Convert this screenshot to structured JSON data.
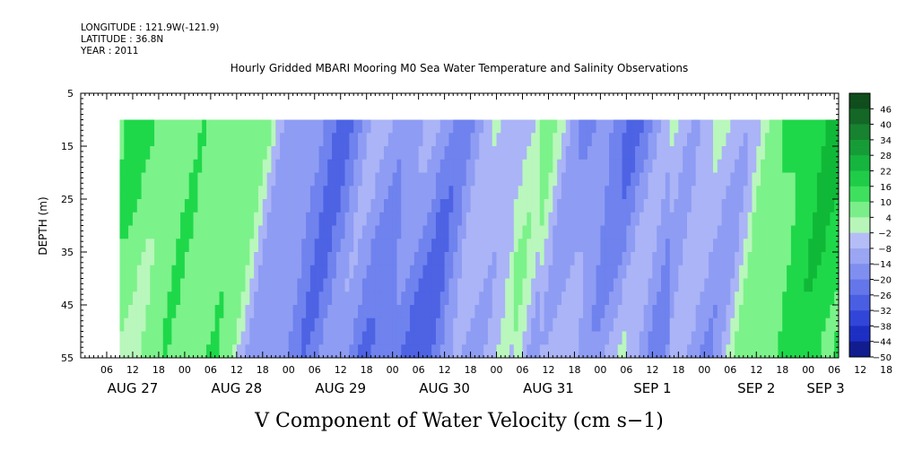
{
  "header": {
    "longitude": "LONGITUDE : 121.9W(-121.9)",
    "latitude": "LATITUDE : 36.8N",
    "year": "YEAR : 2011"
  },
  "chart_data": {
    "type": "heatmap",
    "title": "Hourly Gridded MBARI Mooring M0 Sea Water Temperature and Salinity Observations",
    "xlabel": "V Component of Water Velocity (cm s−1)",
    "ylabel": "DEPTH (m)",
    "ylim": [
      55,
      5
    ],
    "y_ticks": [
      5,
      15,
      25,
      35,
      45,
      55
    ],
    "x_hour_labels": [
      "06",
      "12",
      "18",
      "00",
      "06",
      "12",
      "18",
      "00",
      "06",
      "12",
      "18",
      "00",
      "06",
      "12",
      "18",
      "00",
      "06",
      "12",
      "18",
      "00",
      "06",
      "12",
      "18",
      "00",
      "06",
      "12",
      "18",
      "00",
      "06",
      "12",
      "18",
      "00",
      "06"
    ],
    "x_date_labels": [
      {
        "label": "AUG 27",
        "hour": 12
      },
      {
        "label": "AUG 28",
        "hour": 36
      },
      {
        "label": "AUG 29",
        "hour": 60
      },
      {
        "label": "AUG 30",
        "hour": 84
      },
      {
        "label": "AUG 31",
        "hour": 108
      },
      {
        "label": "SEP  1",
        "hour": 132
      },
      {
        "label": "SEP  2",
        "hour": 156
      },
      {
        "label": "SEP  3",
        "hour": 172
      }
    ],
    "data_depth_range": [
      10,
      55
    ],
    "data_hour_range": [
      9,
      175
    ],
    "colorbar": {
      "labels": [
        "46",
        "40",
        "34",
        "28",
        "22",
        "16",
        "10",
        "4",
        "−2",
        "−8",
        "−14",
        "−20",
        "−26",
        "−32",
        "−38",
        "−44",
        "−50"
      ],
      "min": -50,
      "max": 52,
      "step": 6
    },
    "colors": {
      "positive": "#22d64a",
      "negative": "#6c7ff2"
    }
  }
}
